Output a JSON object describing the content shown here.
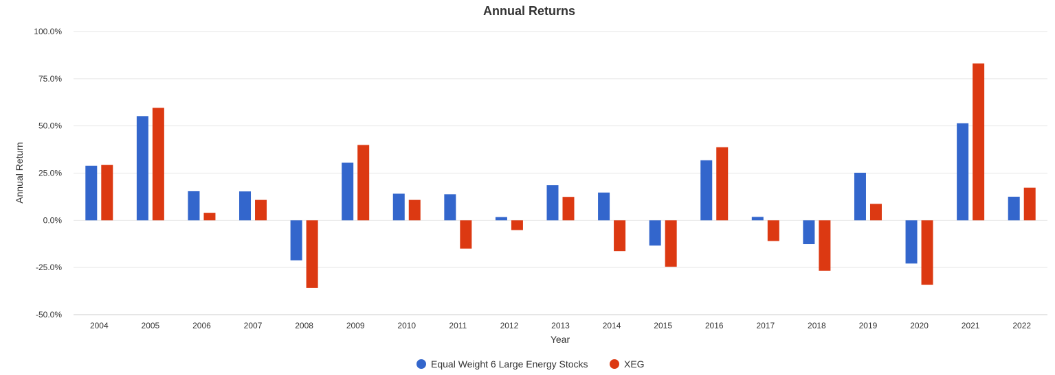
{
  "chart_data": {
    "type": "bar",
    "title": "Annual Returns",
    "xlabel": "Year",
    "ylabel": "Annual Return",
    "ylim": [
      -50,
      100
    ],
    "yticks": [
      100,
      75,
      50,
      25,
      0,
      -25,
      -50
    ],
    "ytick_labels": [
      "100.0%",
      "75.0%",
      "50.0%",
      "25.0%",
      "0.0%",
      "-25.0%",
      "-50.0%"
    ],
    "grid": true,
    "legend_position": "bottom-center",
    "categories": [
      "2004",
      "2005",
      "2006",
      "2007",
      "2008",
      "2009",
      "2010",
      "2011",
      "2012",
      "2013",
      "2014",
      "2015",
      "2016",
      "2017",
      "2018",
      "2019",
      "2020",
      "2021",
      "2022"
    ],
    "series": [
      {
        "name": "Equal Weight 6 Large Energy Stocks",
        "color": "#3366cc",
        "values": [
          28.9,
          55.2,
          15.4,
          15.3,
          -21.2,
          30.5,
          14.1,
          13.8,
          1.7,
          18.6,
          14.7,
          -13.4,
          31.8,
          1.8,
          -12.6,
          25.2,
          -22.9,
          51.4,
          12.5
        ]
      },
      {
        "name": "XEG",
        "color": "#dc3912",
        "values": [
          29.3,
          59.6,
          3.9,
          10.8,
          -35.8,
          39.9,
          10.8,
          -15.0,
          -5.2,
          12.4,
          -16.3,
          -24.6,
          38.7,
          -11.0,
          -26.7,
          8.7,
          -34.2,
          83.1,
          17.3
        ]
      }
    ]
  }
}
